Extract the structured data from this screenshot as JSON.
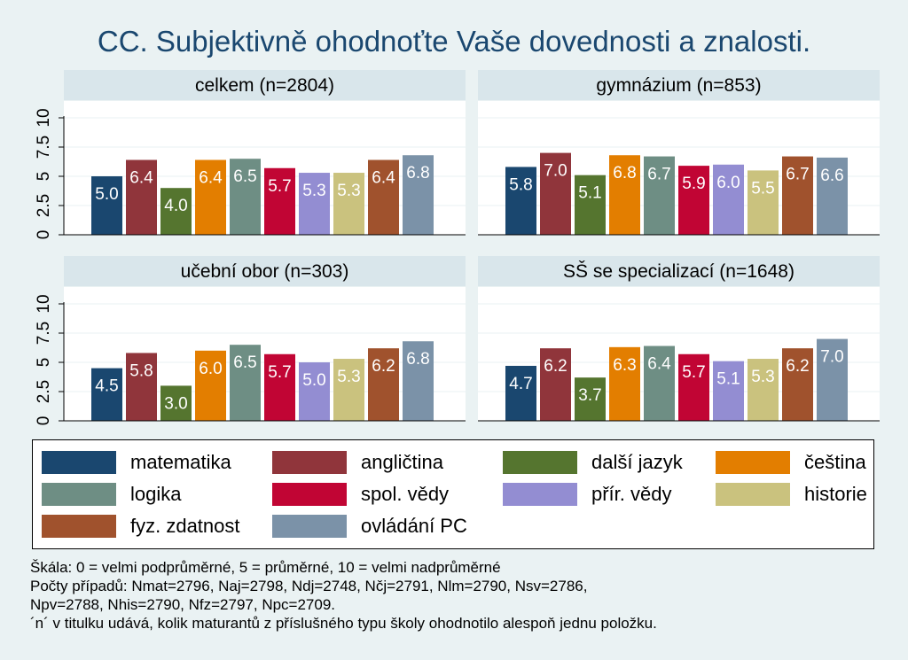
{
  "chart_data": {
    "type": "bar",
    "title": "CC. Subjektivně ohodnoťte Vaše dovednosti a znalosti.",
    "ylim": [
      0,
      10
    ],
    "yticks": [
      "0",
      "2.5",
      "5",
      "7.5",
      "10"
    ],
    "ytick_values": [
      0,
      2.5,
      5,
      7.5,
      10
    ],
    "grid": true,
    "legend_position": "bottom",
    "categories": [
      "matematika",
      "angličtina",
      "další jazyk",
      "čeština",
      "logika",
      "spol. vědy",
      "přír. vědy",
      "historie",
      "fyz. zdatnost",
      "ovládání PC"
    ],
    "colors": [
      "#1a476f",
      "#90353b",
      "#55752f",
      "#e37e00",
      "#6e8e84",
      "#c10534",
      "#938dd2",
      "#cac27e",
      "#a0522d",
      "#7b92a8"
    ],
    "panels": [
      {
        "name": "celkem (n=2804)",
        "values": [
          5.0,
          6.4,
          4.0,
          6.4,
          6.5,
          5.7,
          5.3,
          5.3,
          6.4,
          6.8
        ],
        "labels": [
          "5.0",
          "6.4",
          "4.0",
          "6.4",
          "6.5",
          "5.7",
          "5.3",
          "5.3",
          "6.4",
          "6.8"
        ]
      },
      {
        "name": "gymnázium (n=853)",
        "values": [
          5.8,
          7.0,
          5.1,
          6.8,
          6.7,
          5.9,
          6.0,
          5.5,
          6.7,
          6.6
        ],
        "labels": [
          "5.8",
          "7.0",
          "5.1",
          "6.8",
          "6.7",
          "5.9",
          "6.0",
          "5.5",
          "6.7",
          "6.6"
        ]
      },
      {
        "name": "učební obor (n=303)",
        "values": [
          4.5,
          5.8,
          3.0,
          6.0,
          6.5,
          5.7,
          5.0,
          5.3,
          6.2,
          6.8
        ],
        "labels": [
          "4.5",
          "5.8",
          "3.0",
          "6.0",
          "6.5",
          "5.7",
          "5.0",
          "5.3",
          "6.2",
          "6.8"
        ]
      },
      {
        "name": "SŠ se specializací (n=1648)",
        "values": [
          4.7,
          6.2,
          3.7,
          6.3,
          6.4,
          5.7,
          5.1,
          5.3,
          6.2,
          7.0
        ],
        "labels": [
          "4.7",
          "6.2",
          "3.7",
          "6.3",
          "6.4",
          "5.7",
          "5.1",
          "5.3",
          "6.2",
          "7.0"
        ]
      }
    ]
  },
  "notes": [
    "Škála: 0 = velmi podprůměrné, 5 = průměrné, 10 = velmi nadprůměrné",
    "Počty případů: Nmat=2796, Naj=2798, Ndj=2748, Nčj=2791, Nlm=2790, Nsv=2786,",
    "Npv=2788, Nhis=2790, Nfz=2797, Npc=2709.",
    "´n´ v titulku udává, kolik maturantů z příslušného typu školy ohodnotilo alespoň jednu položku."
  ]
}
